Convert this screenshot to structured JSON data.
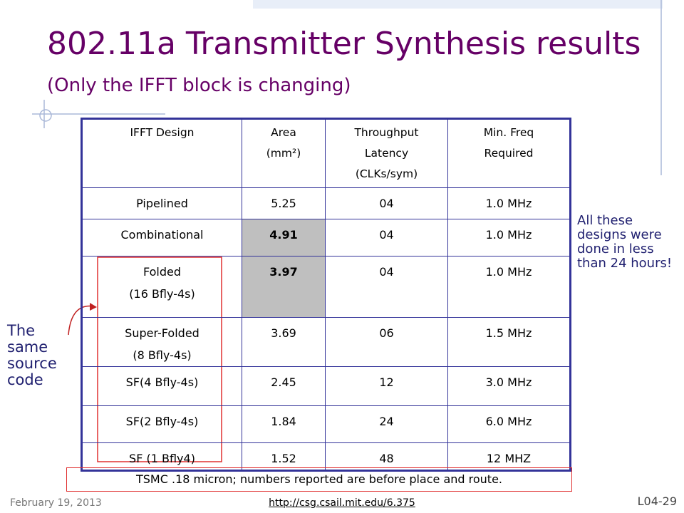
{
  "slide": {
    "title": "802.11a Transmitter Synthesis results",
    "subtitle": "(Only the IFFT block is changing)",
    "table": {
      "header": [
        [
          "IFFT Design"
        ],
        [
          "Area",
          "(mm²)"
        ],
        [
          "Throughput",
          "Latency",
          "(CLKs/sym)"
        ],
        [
          "Min. Freq",
          "Required"
        ]
      ],
      "rows": [
        [
          [
            "Pipelined"
          ],
          [
            "5.25"
          ],
          [
            "04"
          ],
          [
            "1.0 MHz"
          ]
        ],
        [
          [
            "Combinational"
          ],
          [
            "4.91"
          ],
          [
            "04"
          ],
          [
            "1.0 MHz"
          ]
        ],
        [
          [
            "Folded",
            "(16 Bfly-4s)"
          ],
          [
            "3.97"
          ],
          [
            "04"
          ],
          [
            "1.0 MHz"
          ]
        ],
        [
          [
            "Super-Folded",
            "(8 Bfly-4s)"
          ],
          [
            "3.69"
          ],
          [
            "06"
          ],
          [
            "1.5 MHz"
          ]
        ],
        [
          [
            "SF(4 Bfly-4s)"
          ],
          [
            "2.45"
          ],
          [
            "12"
          ],
          [
            "3.0 MHz"
          ]
        ],
        [
          [
            "SF(2 Bfly-4s)"
          ],
          [
            "1.84"
          ],
          [
            "24"
          ],
          [
            "6.0 MHz"
          ]
        ],
        [
          [
            "SF (1 Bfly4)"
          ],
          [
            "1.52"
          ],
          [
            "48"
          ],
          [
            "12 MHZ"
          ]
        ]
      ]
    },
    "side_note": "All these designs were done in less than 24 hours!",
    "left_note": "The same source code",
    "footnote": "TSMC .18 micron; numbers reported are before place and route.",
    "footer": {
      "date": "February 19, 2013",
      "url": "http://csg.csail.mit.edu/6.375",
      "slide_number": "L04-29"
    }
  }
}
